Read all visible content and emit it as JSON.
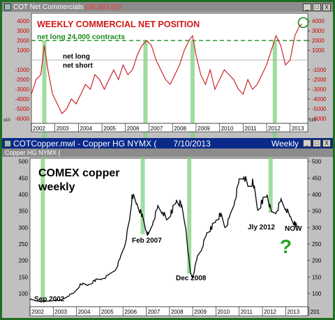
{
  "top_window": {
    "title": "COT Net Commercials",
    "value": "(36,582.00)",
    "buttons": [
      "_",
      "□",
      "X"
    ]
  },
  "main_window": {
    "title": "COTCopper.mwl - Copper HG NYMX (",
    "date": "7/10/2013",
    "period": "Weekly",
    "sub_title": "Copper HG NYMX (",
    "buttons": [
      "_",
      "□",
      "X"
    ]
  },
  "chart_data": [
    {
      "type": "line",
      "title": "WEEKLY COMMERCIAL NET POSITION",
      "subtitle": "net long 24,000 contracts",
      "annotations": [
        "net long",
        "net short"
      ],
      "multiplier_label": "x10",
      "ylim": [
        -6500,
        4800
      ],
      "y_ticks": [
        -6000,
        -5000,
        -4000,
        -3000,
        -2000,
        -1000,
        1000,
        2000,
        3000,
        4000
      ],
      "reference_line": 2000,
      "x_ticks": [
        "2002",
        "2003",
        "2004",
        "2005",
        "2006",
        "2007",
        "2008",
        "2009",
        "2010",
        "2011",
        "2012",
        "2013"
      ],
      "series": [
        {
          "x": [
            2002.0,
            2002.2,
            2002.4,
            2002.55,
            2002.7,
            2002.9,
            2003.1,
            2003.3,
            2003.5,
            2003.7,
            2003.9,
            2004.1,
            2004.3,
            2004.5,
            2004.7,
            2004.9,
            2005.1,
            2005.3,
            2005.5,
            2005.7,
            2005.9,
            2006.1,
            2006.3,
            2006.5,
            2006.7,
            2006.9,
            2007.1,
            2007.3,
            2007.5,
            2007.7,
            2007.9,
            2008.1,
            2008.3,
            2008.5,
            2008.7,
            2008.85,
            2009.0,
            2009.2,
            2009.4,
            2009.6,
            2009.8,
            2010.0,
            2010.2,
            2010.4,
            2010.6,
            2010.8,
            2011.0,
            2011.2,
            2011.4,
            2011.6,
            2011.8,
            2012.0,
            2012.2,
            2012.4,
            2012.6,
            2012.8,
            2013.0,
            2013.2,
            2013.4,
            2013.5
          ],
          "y": [
            -3500,
            -2000,
            -1500,
            1500,
            -1000,
            -3500,
            -4500,
            -5500,
            -5000,
            -4000,
            -4500,
            -3500,
            -2500,
            -3000,
            -1500,
            -2000,
            -3000,
            -2000,
            -1000,
            -2000,
            -500,
            -1500,
            -1000,
            500,
            1500,
            2000,
            1500,
            0,
            -1000,
            -2000,
            -2500,
            -1500,
            -500,
            1000,
            2000,
            2500,
            500,
            -1500,
            -2500,
            -1000,
            -3000,
            -2000,
            -1000,
            -1500,
            -2000,
            -3000,
            -3500,
            -2000,
            -3000,
            -2500,
            -1500,
            -500,
            1000,
            2500,
            1500,
            -500,
            0,
            2500,
            3500,
            3700
          ]
        }
      ]
    },
    {
      "type": "line",
      "title": "COMEX copper weekly",
      "annotations": [
        "Sep 2002",
        "Feb 2007",
        "Dec 2008",
        "Jly 2012",
        "NOW",
        "?"
      ],
      "ylim": [
        60,
        510
      ],
      "y_ticks": [
        100,
        150,
        200,
        250,
        300,
        350,
        400,
        450,
        500
      ],
      "x_ticks": [
        "2002",
        "2003",
        "2004",
        "2005",
        "2006",
        "2007",
        "2008",
        "2009",
        "2010",
        "2011",
        "2012",
        "2013",
        "201"
      ],
      "series": [
        {
          "x": [
            2002.0,
            2002.3,
            2002.7,
            2003.0,
            2003.3,
            2003.6,
            2003.9,
            2004.2,
            2004.5,
            2004.8,
            2005.1,
            2005.4,
            2005.7,
            2005.9,
            2006.1,
            2006.3,
            2006.4,
            2006.6,
            2006.8,
            2007.0,
            2007.1,
            2007.3,
            2007.5,
            2007.7,
            2007.9,
            2008.1,
            2008.3,
            2008.5,
            2008.7,
            2008.9,
            2009.0,
            2009.2,
            2009.4,
            2009.6,
            2009.8,
            2010.0,
            2010.2,
            2010.4,
            2010.6,
            2010.8,
            2011.0,
            2011.2,
            2011.4,
            2011.6,
            2011.8,
            2012.0,
            2012.2,
            2012.4,
            2012.6,
            2012.8,
            2013.0,
            2013.2,
            2013.4,
            2013.5
          ],
          "y": [
            82,
            78,
            75,
            80,
            78,
            92,
            102,
            130,
            125,
            140,
            145,
            155,
            175,
            210,
            255,
            330,
            400,
            370,
            340,
            290,
            275,
            320,
            360,
            350,
            320,
            350,
            380,
            370,
            300,
            160,
            150,
            210,
            240,
            280,
            300,
            320,
            340,
            300,
            330,
            380,
            440,
            460,
            420,
            440,
            350,
            380,
            400,
            340,
            350,
            380,
            360,
            330,
            310,
            305
          ]
        }
      ]
    }
  ]
}
